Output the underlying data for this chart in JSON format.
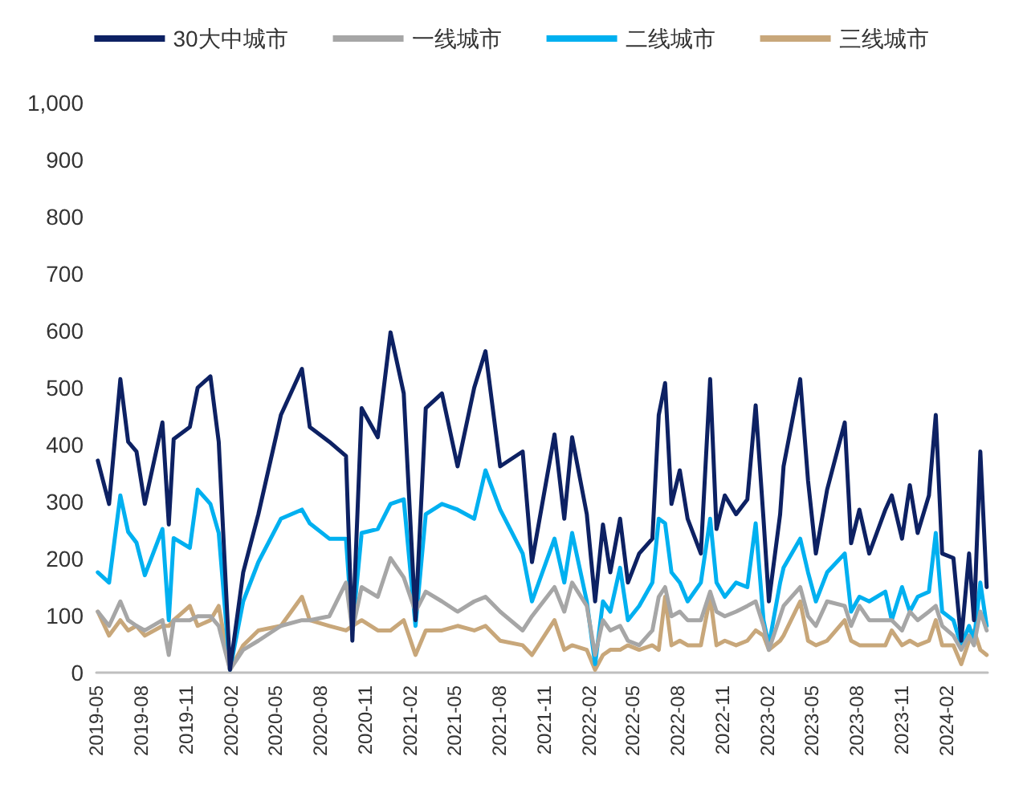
{
  "chart_data": {
    "type": "line",
    "legend": "top",
    "grid": false,
    "marker": "none",
    "line_style": "solid",
    "x": [
      "2019-05-04",
      "2019-05-27",
      "2019-06-19",
      "2019-07-05",
      "2019-07-22",
      "2019-08-08",
      "2019-09-13",
      "2019-09-26",
      "2019-10-06",
      "2019-11-08",
      "2019-11-24",
      "2019-12-20",
      "2020-01-06",
      "2020-01-29",
      "2020-02-25",
      "2020-03-27",
      "2020-05-12",
      "2020-06-24",
      "2020-07-10",
      "2020-08-19",
      "2020-09-22",
      "2020-10-05",
      "2020-10-24",
      "2020-11-26",
      "2020-12-22",
      "2021-01-18",
      "2021-02-11",
      "2021-03-04",
      "2021-04-06",
      "2021-05-08",
      "2021-06-11",
      "2021-07-04",
      "2021-08-03",
      "2021-09-18",
      "2021-10-07",
      "2021-11-22",
      "2021-12-12",
      "2021-12-28",
      "2022-01-27",
      "2022-02-13",
      "2022-03-01",
      "2022-03-16",
      "2022-04-05",
      "2022-04-21",
      "2022-05-14",
      "2022-06-10",
      "2022-06-23",
      "2022-07-06",
      "2022-07-19",
      "2022-08-05",
      "2022-08-21",
      "2022-09-17",
      "2022-10-06",
      "2022-10-19",
      "2022-11-05",
      "2022-11-28",
      "2022-12-21",
      "2023-01-07",
      "2023-01-23",
      "2023-02-03",
      "2023-02-26",
      "2023-03-05",
      "2023-04-08",
      "2023-04-24",
      "2023-05-10",
      "2023-06-02",
      "2023-07-08",
      "2023-07-21",
      "2023-08-07",
      "2023-08-27",
      "2023-09-29",
      "2023-10-12",
      "2023-11-02",
      "2023-11-18",
      "2023-12-04",
      "2023-12-27",
      "2024-01-10",
      "2024-01-23",
      "2024-02-15",
      "2024-03-02",
      "2024-03-18",
      "2024-03-28",
      "2024-04-10",
      "2024-04-23"
    ],
    "series": [
      {
        "name": "30大中城市",
        "color": "#0d2163",
        "values": [
          372,
          296,
          515,
          405,
          388,
          296,
          439,
          260,
          410,
          431,
          500,
          520,
          405,
          5,
          176,
          278,
          452,
          533,
          431,
          405,
          380,
          56,
          464,
          413,
          597,
          490,
          92,
          464,
          490,
          362,
          500,
          564,
          362,
          388,
          194,
          418,
          270,
          413,
          278,
          125,
          260,
          176,
          270,
          158,
          209,
          235,
          452,
          508,
          296,
          355,
          270,
          209,
          515,
          252,
          311,
          278,
          304,
          469,
          270,
          125,
          278,
          362,
          515,
          337,
          209,
          321,
          439,
          227,
          286,
          209,
          286,
          311,
          235,
          329,
          245,
          311,
          452,
          209,
          201,
          56,
          209,
          92,
          388,
          150
        ]
      },
      {
        "name": "一线城市",
        "color": "#a6a6a6",
        "values": [
          107,
          82,
          125,
          92,
          82,
          74,
          92,
          31,
          92,
          92,
          99,
          99,
          82,
          5,
          40,
          56,
          82,
          92,
          92,
          99,
          158,
          74,
          150,
          133,
          201,
          167,
          107,
          142,
          125,
          107,
          125,
          133,
          107,
          74,
          99,
          150,
          107,
          158,
          117,
          31,
          92,
          74,
          82,
          56,
          48,
          74,
          133,
          150,
          99,
          107,
          92,
          92,
          142,
          107,
          99,
          107,
          117,
          125,
          82,
          40,
          99,
          117,
          150,
          99,
          82,
          125,
          117,
          82,
          117,
          92,
          92,
          92,
          74,
          107,
          92,
          107,
          117,
          82,
          65,
          40,
          65,
          48,
          107,
          74
        ]
      },
      {
        "name": "二线城市",
        "color": "#00b0f0",
        "values": [
          176,
          158,
          311,
          247,
          228,
          171,
          252,
          92,
          236,
          219,
          321,
          296,
          245,
          5,
          125,
          194,
          270,
          286,
          262,
          235,
          235,
          74,
          245,
          252,
          296,
          304,
          82,
          278,
          296,
          286,
          270,
          355,
          286,
          209,
          125,
          235,
          158,
          245,
          125,
          15,
          125,
          107,
          184,
          92,
          117,
          158,
          270,
          262,
          176,
          158,
          125,
          158,
          270,
          158,
          133,
          158,
          150,
          262,
          92,
          48,
          158,
          184,
          235,
          176,
          125,
          176,
          209,
          107,
          133,
          125,
          142,
          92,
          150,
          107,
          133,
          142,
          245,
          107,
          92,
          48,
          82,
          56,
          158,
          82
        ]
      },
      {
        "name": "三线城市",
        "color": "#c8a77a",
        "values": [
          107,
          65,
          92,
          74,
          82,
          65,
          82,
          82,
          92,
          117,
          82,
          92,
          117,
          5,
          48,
          74,
          82,
          133,
          92,
          82,
          74,
          82,
          92,
          74,
          74,
          92,
          31,
          74,
          74,
          82,
          74,
          82,
          56,
          48,
          31,
          92,
          40,
          48,
          40,
          5,
          31,
          40,
          40,
          48,
          40,
          48,
          40,
          133,
          48,
          56,
          48,
          48,
          133,
          48,
          56,
          48,
          56,
          74,
          65,
          40,
          56,
          65,
          125,
          56,
          48,
          56,
          92,
          56,
          48,
          48,
          48,
          74,
          48,
          56,
          48,
          56,
          92,
          48,
          48,
          15,
          56,
          74,
          40,
          31
        ]
      }
    ],
    "xlim": [
      "2019-05-01",
      "2024-04-25"
    ],
    "xticks": [
      "2019-05",
      "2019-08",
      "2019-11",
      "2020-02",
      "2020-05",
      "2020-08",
      "2020-11",
      "2021-02",
      "2021-05",
      "2021-08",
      "2021-11",
      "2022-02",
      "2022-05",
      "2022-08",
      "2022-11",
      "2023-02",
      "2023-05",
      "2023-08",
      "2023-11",
      "2024-02"
    ],
    "ylim": [
      0,
      1000
    ],
    "yticks": [
      0,
      100,
      200,
      300,
      400,
      500,
      600,
      700,
      800,
      900,
      {
        "value": 1000,
        "label": "1,000"
      }
    ]
  }
}
